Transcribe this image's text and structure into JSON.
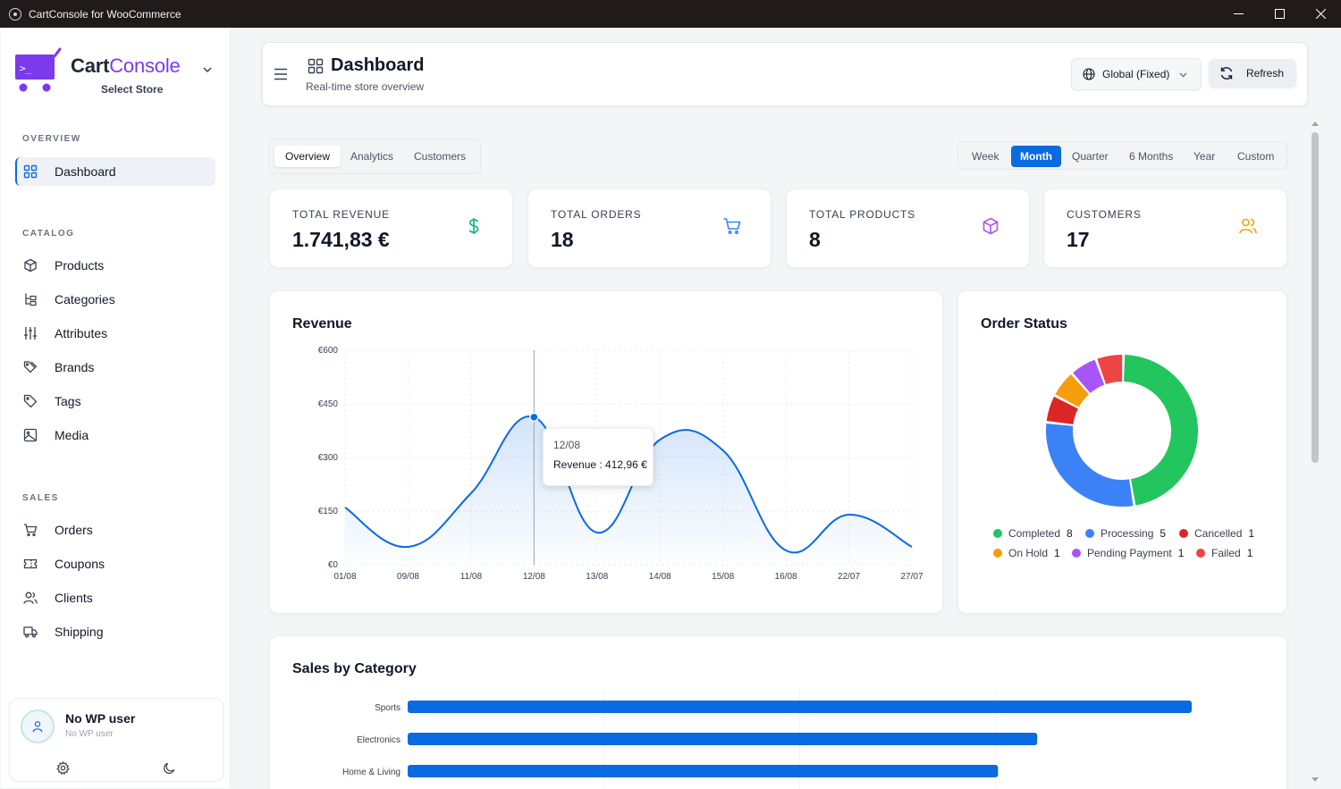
{
  "window": {
    "title": "CartConsole for WooCommerce"
  },
  "brand": {
    "name_part1": "Cart",
    "name_part2": "Console",
    "store_label": "Select Store"
  },
  "sidebar": {
    "sections": [
      {
        "label": "OVERVIEW",
        "items": [
          {
            "label": "Dashboard",
            "icon": "grid-icon",
            "active": true
          }
        ]
      },
      {
        "label": "CATALOG",
        "items": [
          {
            "label": "Products",
            "icon": "box-icon"
          },
          {
            "label": "Categories",
            "icon": "hierarchy-icon"
          },
          {
            "label": "Attributes",
            "icon": "sliders-icon"
          },
          {
            "label": "Brands",
            "icon": "tag-icon"
          },
          {
            "label": "Tags",
            "icon": "tag-icon"
          },
          {
            "label": "Media",
            "icon": "image-icon"
          }
        ]
      },
      {
        "label": "SALES",
        "items": [
          {
            "label": "Orders",
            "icon": "cart-icon"
          },
          {
            "label": "Coupons",
            "icon": "ticket-icon"
          },
          {
            "label": "Clients",
            "icon": "users-icon"
          },
          {
            "label": "Shipping",
            "icon": "truck-icon"
          }
        ]
      }
    ],
    "user": {
      "name": "No WP user",
      "sub": "No WP user"
    }
  },
  "header": {
    "title": "Dashboard",
    "subtitle": "Real-time store overview",
    "scope": "Global (Fixed)",
    "refresh_label": "Refresh"
  },
  "tabs": [
    {
      "label": "Overview",
      "active": true
    },
    {
      "label": "Analytics"
    },
    {
      "label": "Customers"
    }
  ],
  "ranges": [
    {
      "label": "Week"
    },
    {
      "label": "Month",
      "active": true
    },
    {
      "label": "Quarter"
    },
    {
      "label": "6 Months"
    },
    {
      "label": "Year"
    },
    {
      "label": "Custom"
    }
  ],
  "stats": [
    {
      "label": "TOTAL REVENUE",
      "value": "1.741,83 €",
      "icon": "dollar-icon",
      "color": "#10b981"
    },
    {
      "label": "TOTAL ORDERS",
      "value": "18",
      "icon": "cart-icon",
      "color": "#3b82f6"
    },
    {
      "label": "TOTAL PRODUCTS",
      "value": "8",
      "icon": "box-icon",
      "color": "#a855f7"
    },
    {
      "label": "CUSTOMERS",
      "value": "17",
      "icon": "users-icon",
      "color": "#f59e0b"
    }
  ],
  "revenue": {
    "title": "Revenue",
    "tooltip": {
      "date": "12/08",
      "text": "Revenue : 412,96 €"
    }
  },
  "order_status": {
    "title": "Order Status",
    "legend": [
      {
        "label": "Completed",
        "count": "8",
        "color": "#22c55e"
      },
      {
        "label": "Processing",
        "count": "5",
        "color": "#3b82f6"
      },
      {
        "label": "Cancelled",
        "count": "1",
        "color": "#dc2626"
      },
      {
        "label": "On Hold",
        "count": "1",
        "color": "#f59e0b"
      },
      {
        "label": "Pending Payment",
        "count": "1",
        "color": "#a855f7"
      },
      {
        "label": "Failed",
        "count": "1",
        "color": "#ef4444"
      }
    ]
  },
  "sales_by_category": {
    "title": "Sales by Category"
  },
  "chart_data": [
    {
      "type": "area",
      "title": "Revenue",
      "x": [
        "01/08",
        "09/08",
        "11/08",
        "12/08",
        "13/08",
        "14/08",
        "15/08",
        "16/08",
        "22/07",
        "27/07"
      ],
      "values": [
        160,
        50,
        200,
        412.96,
        90,
        350,
        320,
        40,
        140,
        50
      ],
      "ylim": [
        0,
        600
      ],
      "yticks": [
        "€0",
        "€150",
        "€300",
        "€450",
        "€600"
      ],
      "grid": true,
      "color": "#0a6ae0"
    },
    {
      "type": "pie",
      "title": "Order Status",
      "categories": [
        "Completed",
        "Processing",
        "Cancelled",
        "On Hold",
        "Pending Payment",
        "Failed"
      ],
      "values": [
        8,
        5,
        1,
        1,
        1,
        1
      ],
      "colors": [
        "#22c55e",
        "#3b82f6",
        "#dc2626",
        "#f59e0b",
        "#a855f7",
        "#ef4444"
      ],
      "legend": "bottom"
    },
    {
      "type": "bar",
      "title": "Sales by Category",
      "orientation": "horizontal",
      "categories": [
        "Sports",
        "Electronics",
        "Home & Living"
      ],
      "values": [
        100,
        80.3,
        75.3
      ],
      "color": "#0a6ae0"
    }
  ]
}
